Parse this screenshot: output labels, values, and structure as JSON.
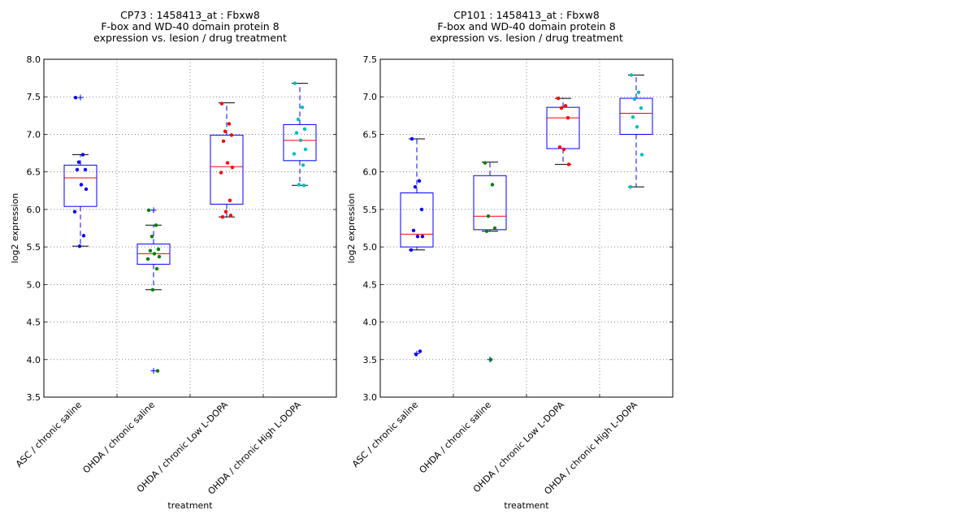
{
  "chart_data": [
    {
      "type": "box",
      "title": [
        "CP73 : 1458413_at : Fbxw8",
        "F-box and WD-40 domain protein 8",
        "expression vs. lesion / drug treatment"
      ],
      "xlabel": "treatment",
      "ylabel": "log2 expression",
      "ylim": [
        3.5,
        8.0
      ],
      "yticks": [
        "3.5",
        "4.0",
        "4.5",
        "5.0",
        "5.5",
        "6.0",
        "6.5",
        "7.0",
        "7.5",
        "8.0"
      ],
      "grid": true,
      "categories": [
        "ASC / chronic saline",
        "OHDA / chronic saline",
        "OHDA / chronic Low L-DOPA",
        "OHDA / chronic High L-DOPA"
      ],
      "series": [
        {
          "name": "ASC / chronic saline",
          "color": "#0000ff",
          "whisker_low": 5.51,
          "q1": 6.04,
          "median": 6.42,
          "q3": 6.59,
          "whisker_high": 6.73,
          "outliers": [
            7.49
          ],
          "points": [
            7.49,
            6.73,
            6.63,
            6.53,
            6.53,
            6.33,
            6.27,
            5.97,
            5.65,
            5.51
          ]
        },
        {
          "name": "OHDA / chronic saline",
          "color": "#008000",
          "whisker_low": 4.93,
          "q1": 5.27,
          "median": 5.41,
          "q3": 5.54,
          "whisker_high": 5.79,
          "outliers": [
            5.99,
            3.85
          ],
          "points": [
            5.99,
            5.79,
            5.64,
            5.47,
            5.45,
            5.41,
            5.37,
            5.34,
            5.21,
            4.93,
            3.85
          ]
        },
        {
          "name": "OHDA / chronic Low L-DOPA",
          "color": "#ff0000",
          "whisker_low": 5.9,
          "q1": 6.07,
          "median": 6.57,
          "q3": 6.99,
          "whisker_high": 7.42,
          "outliers": [],
          "points": [
            7.41,
            7.14,
            7.04,
            6.99,
            6.91,
            6.62,
            6.56,
            6.49,
            6.12,
            5.97,
            5.92,
            5.9
          ]
        },
        {
          "name": "OHDA / chronic High L-DOPA",
          "color": "#00bfbf",
          "whisker_low": 6.32,
          "q1": 6.65,
          "median": 6.92,
          "q3": 7.13,
          "whisker_high": 7.68,
          "outliers": [],
          "points": [
            7.68,
            7.36,
            7.2,
            7.07,
            7.02,
            6.92,
            6.8,
            6.74,
            6.59,
            6.33,
            6.32
          ]
        }
      ]
    },
    {
      "type": "box",
      "title": [
        "CP101 : 1458413_at : Fbxw8",
        "F-box and WD-40 domain protein 8",
        "expression vs. lesion / drug treatment"
      ],
      "xlabel": "treatment",
      "ylabel": "log2 expression",
      "ylim": [
        3.0,
        7.5
      ],
      "yticks": [
        "3.0",
        "3.5",
        "4.0",
        "4.5",
        "5.0",
        "5.5",
        "6.0",
        "6.5",
        "7.0",
        "7.5"
      ],
      "grid": true,
      "categories": [
        "ASC / chronic saline",
        "OHDA / chronic saline",
        "OHDA / chronic Low L-DOPA",
        "OHDA / chronic High L-DOPA"
      ],
      "series": [
        {
          "name": "ASC / chronic saline",
          "color": "#0000ff",
          "whisker_low": 4.96,
          "q1": 5.0,
          "median": 5.17,
          "q3": 5.72,
          "whisker_high": 6.44,
          "outliers": [
            3.58
          ],
          "points": [
            6.44,
            5.88,
            5.8,
            5.5,
            5.22,
            5.14,
            5.14,
            4.96,
            3.61,
            3.57
          ]
        },
        {
          "name": "OHDA / chronic saline",
          "color": "#008000",
          "whisker_low": 5.21,
          "q1": 5.23,
          "median": 5.41,
          "q3": 5.95,
          "whisker_high": 6.13,
          "outliers": [
            3.5
          ],
          "points": [
            6.12,
            5.83,
            5.41,
            5.25,
            5.21,
            3.5
          ]
        },
        {
          "name": "OHDA / chronic Low L-DOPA",
          "color": "#ff0000",
          "whisker_low": 6.1,
          "q1": 6.31,
          "median": 6.72,
          "q3": 6.86,
          "whisker_high": 6.98,
          "outliers": [],
          "points": [
            6.98,
            6.88,
            6.85,
            6.72,
            6.33,
            6.3,
            6.1
          ]
        },
        {
          "name": "OHDA / chronic High L-DOPA",
          "color": "#00bfbf",
          "whisker_low": 5.8,
          "q1": 6.5,
          "median": 6.78,
          "q3": 6.98,
          "whisker_high": 7.29,
          "outliers": [],
          "points": [
            7.29,
            7.06,
            6.97,
            6.85,
            6.73,
            6.6,
            6.23,
            5.8
          ]
        }
      ]
    }
  ]
}
